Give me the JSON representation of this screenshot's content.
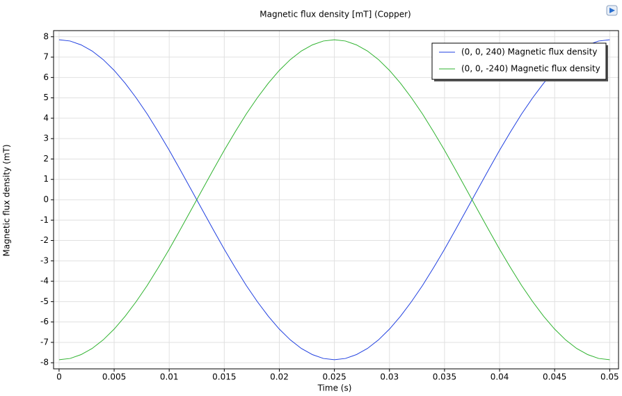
{
  "chart_data": {
    "type": "line",
    "title": "Magnetic flux density [mT] (Copper)",
    "xlabel": "Time (s)",
    "ylabel": "Magnetic flux density (mT)",
    "x": [
      0,
      0.001,
      0.002,
      0.003,
      0.004,
      0.005,
      0.006,
      0.007,
      0.008,
      0.009,
      0.01,
      0.011,
      0.012,
      0.013,
      0.014,
      0.015,
      0.016,
      0.017,
      0.018,
      0.019,
      0.02,
      0.021,
      0.022,
      0.023,
      0.024,
      0.025,
      0.026,
      0.027,
      0.028,
      0.029,
      0.03,
      0.031,
      0.032,
      0.033,
      0.034,
      0.035,
      0.036,
      0.037,
      0.038,
      0.039,
      0.04,
      0.041,
      0.042,
      0.043,
      0.044,
      0.045,
      0.046,
      0.047,
      0.048,
      0.049,
      0.05
    ],
    "series": [
      {
        "name": "(0, 0, 240) Magnetic flux density",
        "color": "#1f3fe0",
        "values": [
          7.85,
          7.79,
          7.6,
          7.3,
          6.88,
          6.35,
          5.72,
          5,
          4.21,
          3.34,
          2.43,
          1.47,
          0.49,
          -0.49,
          -1.47,
          -2.43,
          -3.34,
          -4.21,
          -5,
          -5.72,
          -6.35,
          -6.88,
          -7.3,
          -7.6,
          -7.79,
          -7.85,
          -7.79,
          -7.6,
          -7.3,
          -6.88,
          -6.35,
          -5.72,
          -5,
          -4.21,
          -3.34,
          -2.43,
          -1.47,
          -0.49,
          0.49,
          1.47,
          2.43,
          3.34,
          4.21,
          5,
          5.72,
          6.35,
          6.88,
          7.3,
          7.6,
          7.79,
          7.85
        ]
      },
      {
        "name": "(0, 0, -240) Magnetic flux density",
        "color": "#2db22d",
        "values": [
          -7.85,
          -7.79,
          -7.6,
          -7.3,
          -6.88,
          -6.35,
          -5.72,
          -5,
          -4.21,
          -3.34,
          -2.43,
          -1.47,
          -0.49,
          0.49,
          1.47,
          2.43,
          3.34,
          4.21,
          5,
          5.72,
          6.35,
          6.88,
          7.3,
          7.6,
          7.79,
          7.85,
          7.79,
          7.6,
          7.3,
          6.88,
          6.35,
          5.72,
          5,
          4.21,
          3.34,
          2.43,
          1.47,
          0.49,
          -0.49,
          -1.47,
          -2.43,
          -3.34,
          -4.21,
          -5,
          -5.72,
          -6.35,
          -6.88,
          -7.3,
          -7.6,
          -7.79,
          -7.85
        ]
      }
    ],
    "xlim": [
      -0.0005,
      0.0508
    ],
    "xticks": [
      0,
      0.005,
      0.01,
      0.015,
      0.02,
      0.025,
      0.03,
      0.035,
      0.04,
      0.045,
      0.05
    ],
    "ylim": [
      -8.3,
      8.3
    ],
    "yticks": [
      -8,
      -7,
      -6,
      -5,
      -4,
      -3,
      -2,
      -1,
      0,
      1,
      2,
      3,
      4,
      5,
      6,
      7,
      8
    ],
    "grid": true,
    "legend": "upper right"
  }
}
